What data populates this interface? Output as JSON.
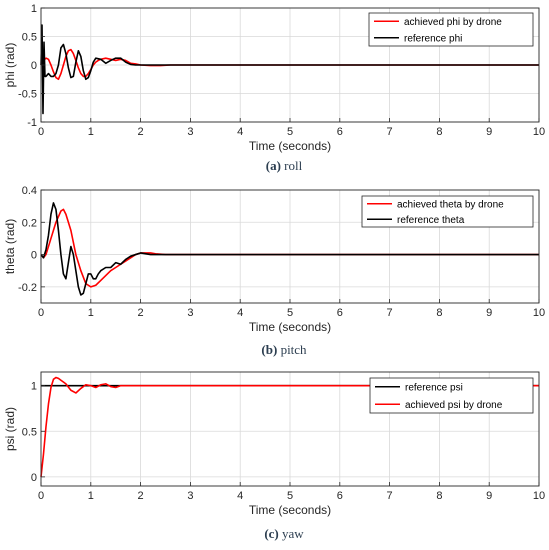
{
  "chart_data": [
    {
      "type": "line",
      "caption_tag": "(a)",
      "caption_text": " roll",
      "xlabel": "Time (seconds)",
      "ylabel": "phi (rad)",
      "xlim": [
        0,
        10
      ],
      "ylim": [
        -1,
        1
      ],
      "xticks": [
        0,
        1,
        2,
        3,
        4,
        5,
        6,
        7,
        8,
        9,
        10
      ],
      "yticks": [
        -1,
        -0.5,
        0,
        0.5,
        1
      ],
      "ytick_labels": [
        "-1",
        "-0.5",
        "0",
        "0.5",
        "1"
      ],
      "grid": true,
      "legend_position": "top-right",
      "series": [
        {
          "name": "achieved phi by drone",
          "color": "#ff0000",
          "x": [
            0,
            0.05,
            0.1,
            0.15,
            0.2,
            0.25,
            0.3,
            0.35,
            0.4,
            0.45,
            0.5,
            0.55,
            0.6,
            0.65,
            0.7,
            0.75,
            0.8,
            0.85,
            0.9,
            0.95,
            1.0,
            1.05,
            1.1,
            1.15,
            1.2,
            1.3,
            1.4,
            1.5,
            1.6,
            1.7,
            1.8,
            1.9,
            2.0,
            2.2,
            2.4,
            2.6,
            3.0,
            10
          ],
          "y": [
            0,
            0.08,
            0.12,
            0.1,
            0.0,
            -0.12,
            -0.22,
            -0.25,
            -0.15,
            0.0,
            0.15,
            0.25,
            0.27,
            0.2,
            0.08,
            -0.05,
            -0.15,
            -0.2,
            -0.2,
            -0.15,
            -0.08,
            0.0,
            0.05,
            0.08,
            0.1,
            0.12,
            0.1,
            0.08,
            0.1,
            0.08,
            0.03,
            0.02,
            0.0,
            -0.01,
            -0.01,
            0.0,
            0.0,
            0.0
          ]
        },
        {
          "name": "reference phi",
          "color": "#000000",
          "x": [
            0,
            0.02,
            0.04,
            0.06,
            0.08,
            0.1,
            0.15,
            0.2,
            0.25,
            0.3,
            0.35,
            0.4,
            0.45,
            0.5,
            0.55,
            0.6,
            0.65,
            0.7,
            0.75,
            0.8,
            0.85,
            0.9,
            0.95,
            1.0,
            1.05,
            1.1,
            1.2,
            1.3,
            1.4,
            1.5,
            1.6,
            1.7,
            1.8,
            1.9,
            2.0,
            2.2,
            2.5,
            10
          ],
          "y": [
            0,
            0.7,
            -0.85,
            0.4,
            -0.2,
            -0.2,
            -0.15,
            -0.2,
            -0.2,
            -0.15,
            0.0,
            0.3,
            0.36,
            0.2,
            -0.05,
            -0.22,
            -0.2,
            0.05,
            0.25,
            0.15,
            -0.1,
            -0.25,
            -0.22,
            -0.1,
            0.05,
            0.12,
            0.1,
            0.03,
            0.08,
            0.12,
            0.12,
            0.05,
            0.01,
            0.0,
            0.0,
            0.0,
            0.0,
            0.0
          ]
        }
      ]
    },
    {
      "type": "line",
      "caption_tag": "(b)",
      "caption_text": " pitch",
      "xlabel": "Time (seconds)",
      "ylabel": "theta (rad)",
      "xlim": [
        0,
        10
      ],
      "ylim": [
        -0.3,
        0.4
      ],
      "xticks": [
        0,
        1,
        2,
        3,
        4,
        5,
        6,
        7,
        8,
        9,
        10
      ],
      "yticks": [
        -0.2,
        0,
        0.2,
        0.4
      ],
      "ytick_labels": [
        "-0.2",
        "0",
        "0.2",
        "0.4"
      ],
      "grid": true,
      "legend_position": "top-right",
      "series": [
        {
          "name": "achieved theta by drone",
          "color": "#ff0000",
          "x": [
            0,
            0.05,
            0.1,
            0.2,
            0.3,
            0.4,
            0.45,
            0.5,
            0.6,
            0.7,
            0.8,
            0.9,
            1.0,
            1.1,
            1.2,
            1.3,
            1.4,
            1.5,
            1.6,
            1.7,
            1.8,
            1.9,
            2.0,
            2.1,
            2.2,
            2.3,
            2.5,
            2.8,
            3.0,
            10
          ],
          "y": [
            0,
            -0.02,
            0.0,
            0.1,
            0.2,
            0.27,
            0.28,
            0.25,
            0.15,
            0.0,
            -0.1,
            -0.18,
            -0.2,
            -0.19,
            -0.16,
            -0.13,
            -0.1,
            -0.08,
            -0.06,
            -0.04,
            -0.02,
            0.0,
            0.01,
            0.01,
            0.01,
            0.005,
            0.0,
            0.0,
            0.0,
            0.0
          ]
        },
        {
          "name": "reference theta",
          "color": "#000000",
          "x": [
            0,
            0.05,
            0.1,
            0.15,
            0.2,
            0.25,
            0.3,
            0.35,
            0.4,
            0.45,
            0.5,
            0.55,
            0.6,
            0.65,
            0.7,
            0.75,
            0.8,
            0.85,
            0.9,
            0.95,
            1.0,
            1.05,
            1.1,
            1.15,
            1.2,
            1.3,
            1.4,
            1.5,
            1.6,
            1.7,
            1.8,
            1.9,
            2.0,
            2.2,
            2.5,
            10
          ],
          "y": [
            0,
            -0.02,
            0.03,
            0.12,
            0.25,
            0.32,
            0.28,
            0.15,
            0.0,
            -0.12,
            -0.15,
            -0.05,
            0.05,
            0.0,
            -0.1,
            -0.2,
            -0.25,
            -0.24,
            -0.18,
            -0.12,
            -0.12,
            -0.15,
            -0.15,
            -0.12,
            -0.1,
            -0.08,
            -0.08,
            -0.05,
            -0.06,
            -0.03,
            -0.01,
            0.0,
            0.01,
            0.0,
            0.0,
            0.0
          ]
        }
      ]
    },
    {
      "type": "line",
      "caption_tag": "(c)",
      "caption_text": " yaw",
      "xlabel": "Time (seconds)",
      "ylabel": "psi (rad)",
      "xlim": [
        0,
        10
      ],
      "ylim": [
        -0.1,
        1.15
      ],
      "xticks": [
        0,
        1,
        2,
        3,
        4,
        5,
        6,
        7,
        8,
        9,
        10
      ],
      "yticks": [
        0,
        0.5,
        1
      ],
      "ytick_labels": [
        "0",
        "0.5",
        "1"
      ],
      "grid": true,
      "legend_position": "top-right",
      "series": [
        {
          "name": "reference psi",
          "color": "#000000",
          "x": [
            0,
            10
          ],
          "y": [
            1,
            1
          ]
        },
        {
          "name": "achieved psi by drone",
          "color": "#ff0000",
          "x": [
            0,
            0.05,
            0.1,
            0.15,
            0.2,
            0.25,
            0.3,
            0.35,
            0.4,
            0.5,
            0.6,
            0.7,
            0.8,
            0.9,
            1.0,
            1.1,
            1.2,
            1.3,
            1.4,
            1.5,
            1.6,
            1.8,
            2.0,
            10
          ],
          "y": [
            0,
            0.25,
            0.55,
            0.8,
            0.98,
            1.07,
            1.09,
            1.08,
            1.06,
            1.02,
            0.95,
            0.92,
            0.97,
            1.01,
            1.0,
            0.98,
            1.01,
            1.02,
            0.99,
            0.98,
            1.0,
            1.0,
            1.0,
            1.0
          ]
        }
      ]
    }
  ]
}
